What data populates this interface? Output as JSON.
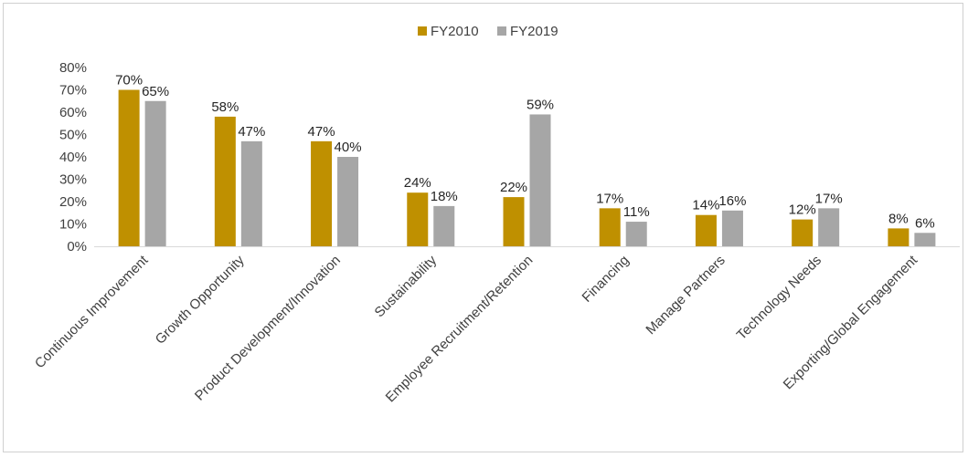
{
  "chart_data": {
    "type": "bar",
    "title": "",
    "xlabel": "",
    "ylabel": "",
    "ylim": [
      0,
      80
    ],
    "yticks": [
      0,
      10,
      20,
      30,
      40,
      50,
      60,
      70,
      80
    ],
    "ytick_labels": [
      "0%",
      "10%",
      "20%",
      "30%",
      "40%",
      "50%",
      "60%",
      "70%",
      "80%"
    ],
    "grid": false,
    "legend": "top-center",
    "categories": [
      "Continuous Improvement",
      "Growth Opportunity",
      "Product Development/Innovation",
      "Sustainability",
      "Employee Recruitment/Retention",
      "Financing",
      "Manage Partners",
      "Technology Needs",
      "Exporting/Global Engagement"
    ],
    "series": [
      {
        "name": "FY2010",
        "color": "#BF9000",
        "values": [
          70,
          58,
          47,
          24,
          22,
          17,
          14,
          12,
          8
        ],
        "labels": [
          "70%",
          "58%",
          "47%",
          "24%",
          "22%",
          "17%",
          "14%",
          "12%",
          "8%"
        ]
      },
      {
        "name": "FY2019",
        "color": "#A6A6A6",
        "values": [
          65,
          47,
          40,
          18,
          59,
          11,
          16,
          17,
          6
        ],
        "labels": [
          "65%",
          "47%",
          "40%",
          "18%",
          "59%",
          "11%",
          "16%",
          "17%",
          "6%"
        ]
      }
    ]
  }
}
